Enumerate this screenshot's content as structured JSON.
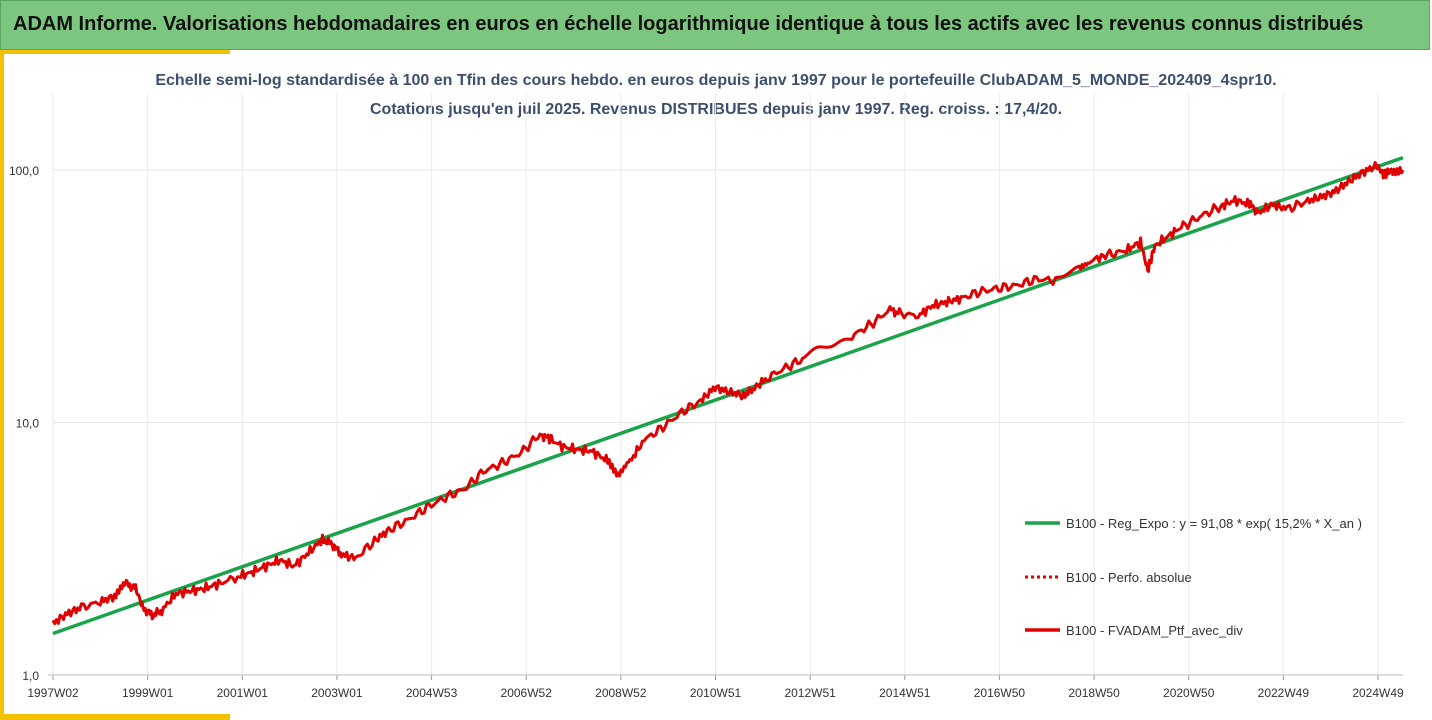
{
  "header": {
    "title": "ADAM Informe. Valorisations hebdomadaires en euros en échelle logarithmique identique à tous les actifs avec les revenus connus distribués"
  },
  "chart_data": {
    "type": "line",
    "title_line1": "Echelle semi-log standardisée à 100 en Tfin des cours hebdo. en euros depuis janv 1997 pour le portefeuille ClubADAM_5_MONDE_202409_4spr10.",
    "title_line2": "Cotations jusqu'en juil 2025. Revenus DISTRIBUES depuis janv 1997. Reg. croiss. : 17,4/20.",
    "y_scale": "log",
    "ylim": [
      1,
      100
    ],
    "y_ticks": [
      "1,0",
      "10,0",
      "100,0"
    ],
    "x_ticks": [
      "1997W02",
      "1999W01",
      "2001W01",
      "2003W01",
      "2004W53",
      "2006W52",
      "2008W52",
      "2010W51",
      "2012W51",
      "2014W51",
      "2016W50",
      "2018W50",
      "2020W50",
      "2022W49",
      "2024W49"
    ],
    "xlim": [
      1997.0,
      2025.55
    ],
    "grid": "vertical",
    "legend_position": "right",
    "colors": {
      "regression": "#1aa34a",
      "perf": "#e00000",
      "portfolio": "#e00000"
    },
    "series": [
      {
        "name": "B100 - Reg_Expo : y = 91,08 * exp( 15,2% *  X_an )",
        "style": "solid-thin",
        "x": [
          1997.0,
          2025.55
        ],
        "y": [
          1.46,
          112.0
        ]
      },
      {
        "name": "B100 - Perfo. absolue",
        "style": "dotted",
        "x": [],
        "y": []
      },
      {
        "name": "B100 - FVADAM_Ptf_avec_div",
        "style": "solid-thick",
        "x": [
          1997.0,
          1997.3,
          1997.6,
          1998.0,
          1998.3,
          1998.55,
          1998.75,
          1998.9,
          1999.1,
          1999.3,
          1999.6,
          1999.9,
          2000.2,
          2000.5,
          2000.9,
          2001.2,
          2001.5,
          2001.8,
          2002.1,
          2002.4,
          2002.7,
          2002.9,
          2003.1,
          2003.4,
          2003.8,
          2004.1,
          2004.5,
          2004.9,
          2005.3,
          2005.7,
          2006.1,
          2006.5,
          2006.9,
          2007.3,
          2007.5,
          2007.8,
          2008.1,
          2008.4,
          2008.7,
          2008.95,
          2009.2,
          2009.5,
          2009.9,
          2010.3,
          2010.7,
          2011.0,
          2011.3,
          2011.6,
          2011.8,
          2012.1,
          2012.5,
          2012.9,
          2013.4,
          2013.9,
          2014.3,
          2014.7,
          2014.9,
          2015.3,
          2015.6,
          2015.9,
          2016.2,
          2016.6,
          2017.0,
          2017.4,
          2017.8,
          2018.2,
          2018.7,
          2018.95,
          2019.3,
          2019.7,
          2020.0,
          2020.15,
          2020.3,
          2020.6,
          2020.9,
          2021.3,
          2021.7,
          2022.0,
          2022.3,
          2022.5,
          2022.8,
          2023.1,
          2023.5,
          2023.8,
          2024.1,
          2024.4,
          2024.7,
          2025.0,
          2025.15,
          2025.3,
          2025.55
        ],
        "y": [
          1.6,
          1.75,
          1.85,
          1.95,
          2.05,
          2.3,
          2.2,
          1.85,
          1.72,
          1.8,
          2.1,
          2.15,
          2.2,
          2.3,
          2.45,
          2.55,
          2.7,
          2.85,
          2.7,
          3.05,
          3.45,
          3.3,
          3.0,
          2.9,
          3.4,
          3.75,
          4.1,
          4.6,
          5.05,
          5.45,
          6.4,
          6.9,
          7.6,
          9.0,
          8.6,
          8.0,
          7.8,
          7.7,
          7.1,
          6.3,
          7.0,
          8.5,
          9.6,
          11.0,
          12.2,
          13.8,
          13.2,
          12.8,
          13.5,
          15.0,
          16.5,
          18.0,
          20.0,
          22.0,
          24.5,
          28.0,
          27.0,
          26.5,
          29.0,
          30.0,
          31.0,
          33.0,
          34.0,
          35.0,
          37.0,
          36.5,
          40.0,
          44.0,
          46.0,
          48.0,
          52.0,
          40.0,
          50.0,
          55.0,
          60.0,
          66.0,
          72.0,
          76.0,
          73.0,
          68.0,
          73.0,
          70.0,
          75.0,
          78.0,
          82.0,
          90.0,
          98.0,
          104.0,
          95.0,
          100.0,
          100.0
        ]
      }
    ]
  }
}
